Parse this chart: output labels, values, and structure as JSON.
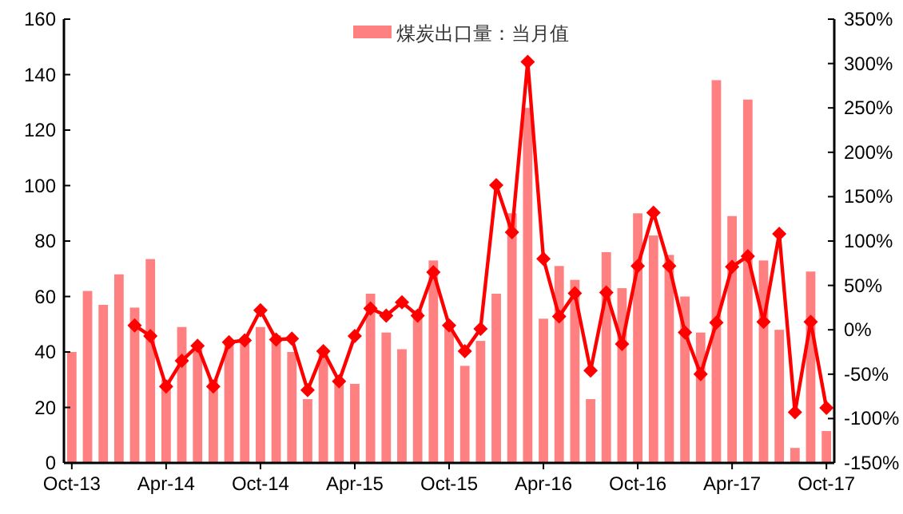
{
  "chart_data": {
    "type": "bar",
    "categories": [
      "Oct-13",
      null,
      null,
      null,
      null,
      null,
      "Apr-14",
      null,
      null,
      null,
      null,
      null,
      "Oct-14",
      null,
      null,
      null,
      null,
      null,
      "Apr-15",
      null,
      null,
      null,
      null,
      null,
      "Oct-15",
      null,
      null,
      null,
      null,
      null,
      "Apr-16",
      null,
      null,
      null,
      null,
      null,
      "Oct-16",
      null,
      null,
      null,
      null,
      null,
      "Apr-17",
      null,
      null,
      null,
      null,
      null,
      "Oct-17"
    ],
    "series": [
      {
        "name": "煤炭出口量：当月值",
        "color": "#ff8080",
        "values": [
          40,
          62,
          57,
          68,
          56,
          73.5,
          30,
          49,
          42,
          30,
          44,
          45,
          49,
          46,
          40,
          23,
          40,
          30,
          28.5,
          61,
          47,
          41,
          55,
          73,
          50,
          35,
          44,
          61,
          90,
          128,
          52,
          71,
          66,
          23,
          76,
          63,
          90,
          82,
          75,
          60,
          47,
          138,
          89,
          131,
          73,
          48,
          5.4,
          69,
          11.5
        ]
      },
      {
        "type": "line",
        "axis": "y2",
        "color": "#ff0000",
        "marker": "diamond",
        "line_style": "solid",
        "values": [
          null,
          null,
          null,
          null,
          5,
          -7,
          -64,
          -35,
          -18,
          -64,
          -14,
          -12,
          22,
          -11,
          -10,
          -68,
          -24,
          -58,
          -7,
          24,
          16,
          31,
          16,
          65,
          5,
          -24,
          1,
          163,
          110,
          302,
          80,
          15,
          41,
          -46,
          42,
          -16,
          72,
          132,
          72,
          -3,
          -50,
          8,
          71,
          83,
          9,
          108,
          -93,
          9,
          -88
        ]
      }
    ],
    "ylim": [
      0,
      160
    ],
    "yticks": [
      0,
      20,
      40,
      60,
      80,
      100,
      120,
      140,
      160
    ],
    "y2lim": [
      -150,
      350
    ],
    "y2ticks": [
      {
        "value": -150,
        "label": "-150%"
      },
      {
        "value": -100,
        "label": "-100%"
      },
      {
        "value": -50,
        "label": "-50%"
      },
      {
        "value": 0,
        "label": "0%"
      },
      {
        "value": 50,
        "label": "50%"
      },
      {
        "value": 100,
        "label": "100%"
      },
      {
        "value": 150,
        "label": "150%"
      },
      {
        "value": 200,
        "label": "200%"
      },
      {
        "value": 250,
        "label": "250%"
      },
      {
        "value": 300,
        "label": "300%"
      },
      {
        "value": 350,
        "label": "350%"
      }
    ],
    "legend": "top",
    "grid": false
  }
}
